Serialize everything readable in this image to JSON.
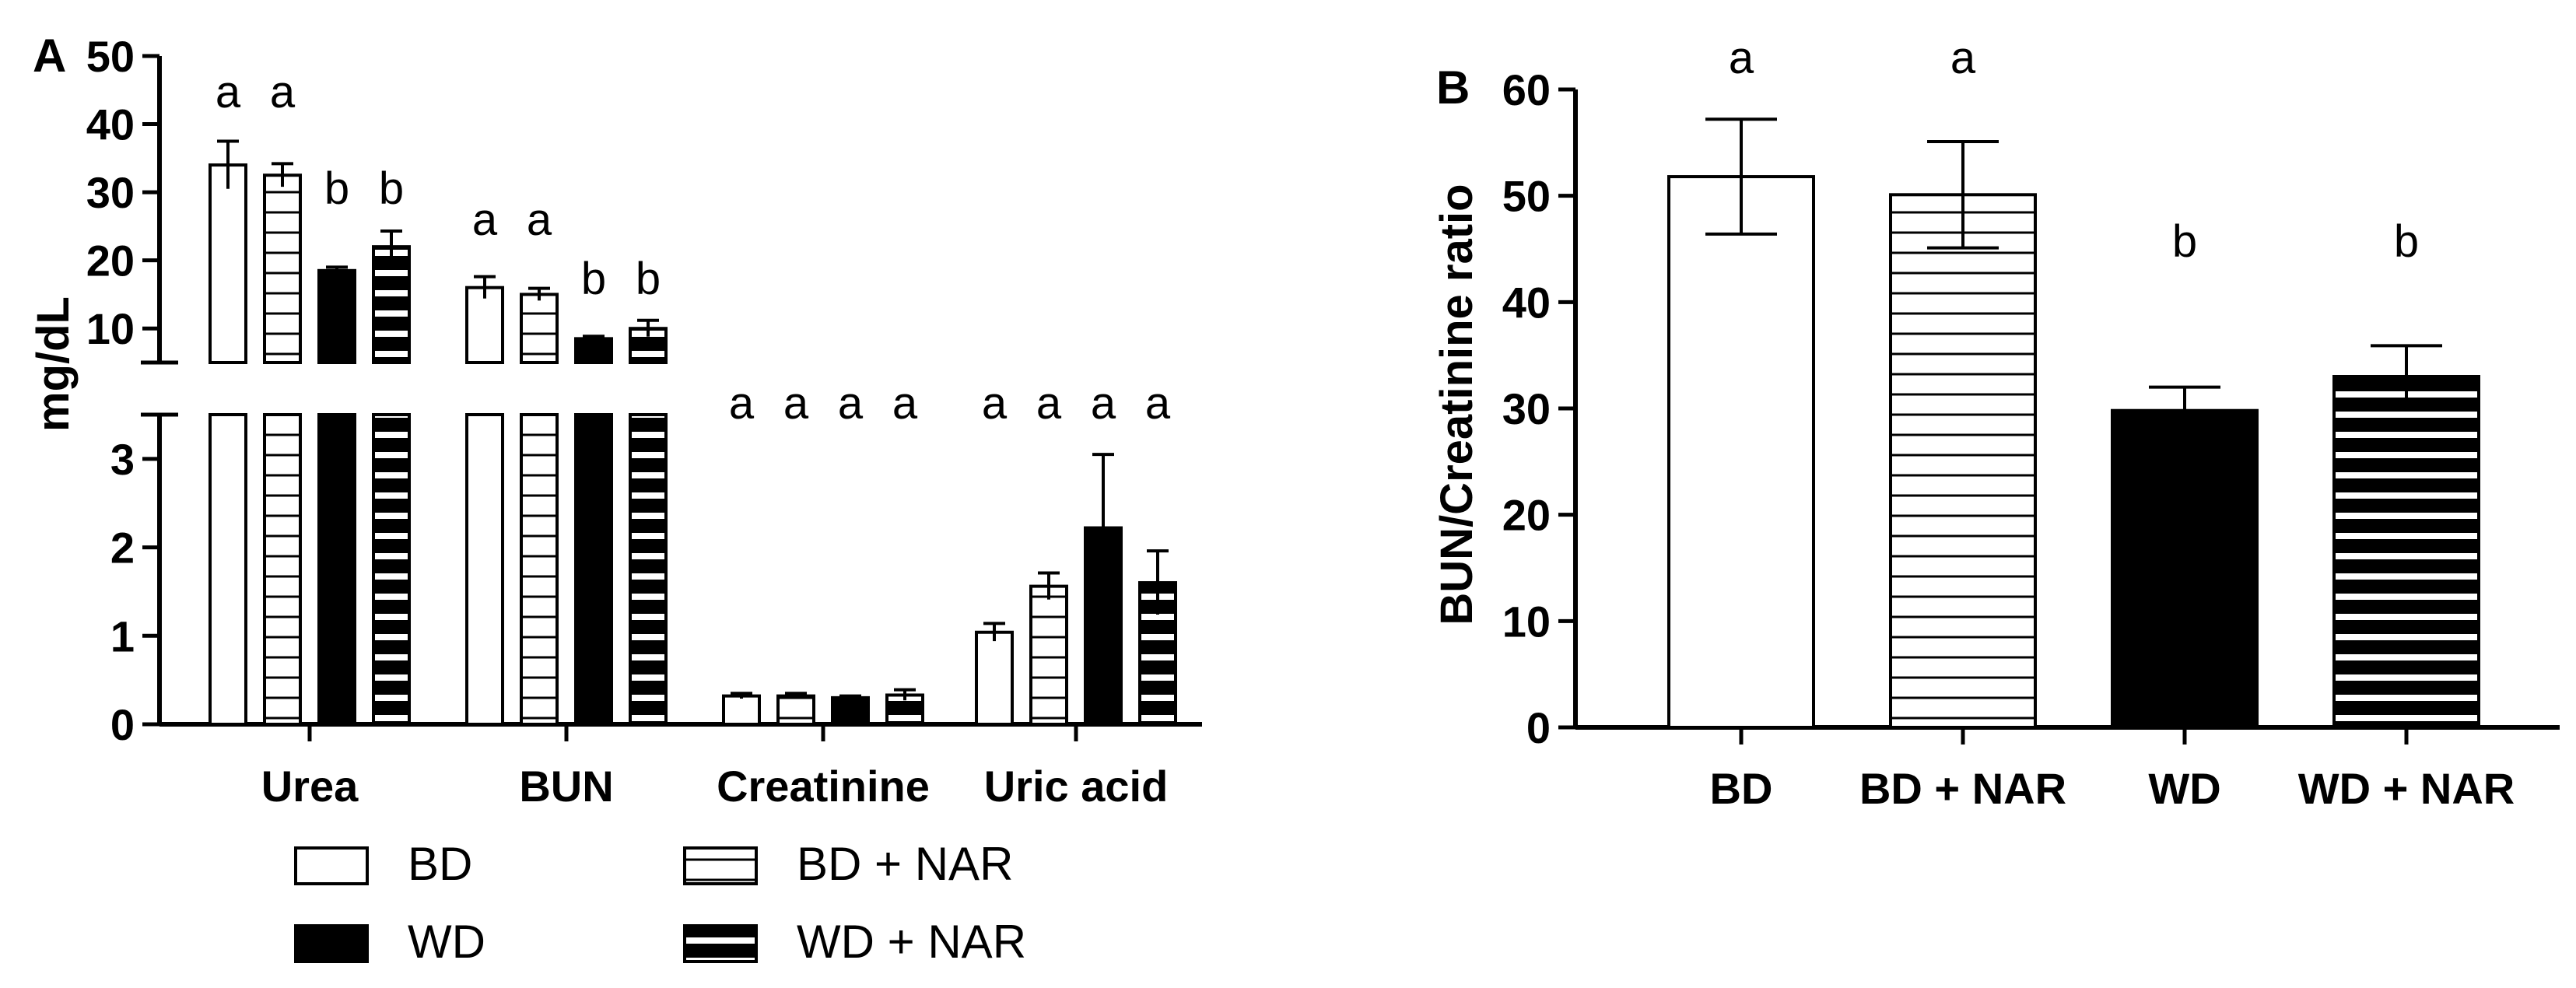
{
  "panel_a_label": "A",
  "panel_b_label": "B",
  "legend": [
    {
      "label": "BD",
      "pattern": "open"
    },
    {
      "label": "BD + NAR",
      "pattern": "hstripe"
    },
    {
      "label": "WD",
      "pattern": "solid"
    },
    {
      "label": "WD + NAR",
      "pattern": "thickstripe"
    }
  ],
  "colors": {
    "fill": "#000000",
    "background": "#ffffff"
  },
  "chart_data": [
    {
      "panel": "A",
      "type": "bar",
      "ylabel": "mg/dL",
      "categories": [
        "Urea",
        "BUN",
        "Creatinine",
        "Uric acid"
      ],
      "axis_break": true,
      "upper_yticks": [
        "10",
        "20",
        "30",
        "40",
        "50"
      ],
      "lower_yticks": [
        "0",
        "1",
        "2",
        "3"
      ],
      "ylim_upper": [
        5,
        50
      ],
      "ylim_lower": [
        0,
        3.5
      ],
      "grid": false,
      "legend_position": "bottom",
      "series": [
        {
          "name": "BD",
          "values": [
            34.0,
            16.0,
            0.32,
            1.04
          ],
          "errors": [
            3.5,
            1.6,
            0.03,
            0.1
          ],
          "letters": [
            "a",
            "a",
            "a",
            "a"
          ]
        },
        {
          "name": "BD + NAR",
          "values": [
            32.5,
            15.0,
            0.32,
            1.56
          ],
          "errors": [
            1.7,
            0.9,
            0.03,
            0.15
          ],
          "letters": [
            "a",
            "a",
            "a",
            "a"
          ]
        },
        {
          "name": "WD",
          "values": [
            18.5,
            8.5,
            0.3,
            2.22
          ],
          "errors": [
            0.5,
            0.35,
            0.02,
            0.83
          ],
          "letters": [
            "b",
            "b",
            "a",
            "a"
          ]
        },
        {
          "name": "WD + NAR",
          "values": [
            22.0,
            10.0,
            0.33,
            1.6
          ],
          "errors": [
            2.3,
            1.2,
            0.06,
            0.36
          ],
          "letters": [
            "b",
            "b",
            "a",
            "a"
          ]
        }
      ]
    },
    {
      "panel": "B",
      "type": "bar",
      "ylabel": "BUN/Creatinine ratio",
      "categories": [
        "BD",
        "BD + NAR",
        "WD",
        "WD + NAR"
      ],
      "values": [
        51.8,
        50.1,
        29.8,
        33.0
      ],
      "errors": [
        5.4,
        5.0,
        2.2,
        2.9
      ],
      "letters": [
        "a",
        "a",
        "b",
        "b"
      ],
      "patterns": [
        "open",
        "hstripe",
        "solid",
        "thickstripe"
      ],
      "ylim": [
        0,
        60
      ],
      "yticks": [
        "0",
        "10",
        "20",
        "30",
        "40",
        "50",
        "60"
      ],
      "grid": false
    }
  ]
}
